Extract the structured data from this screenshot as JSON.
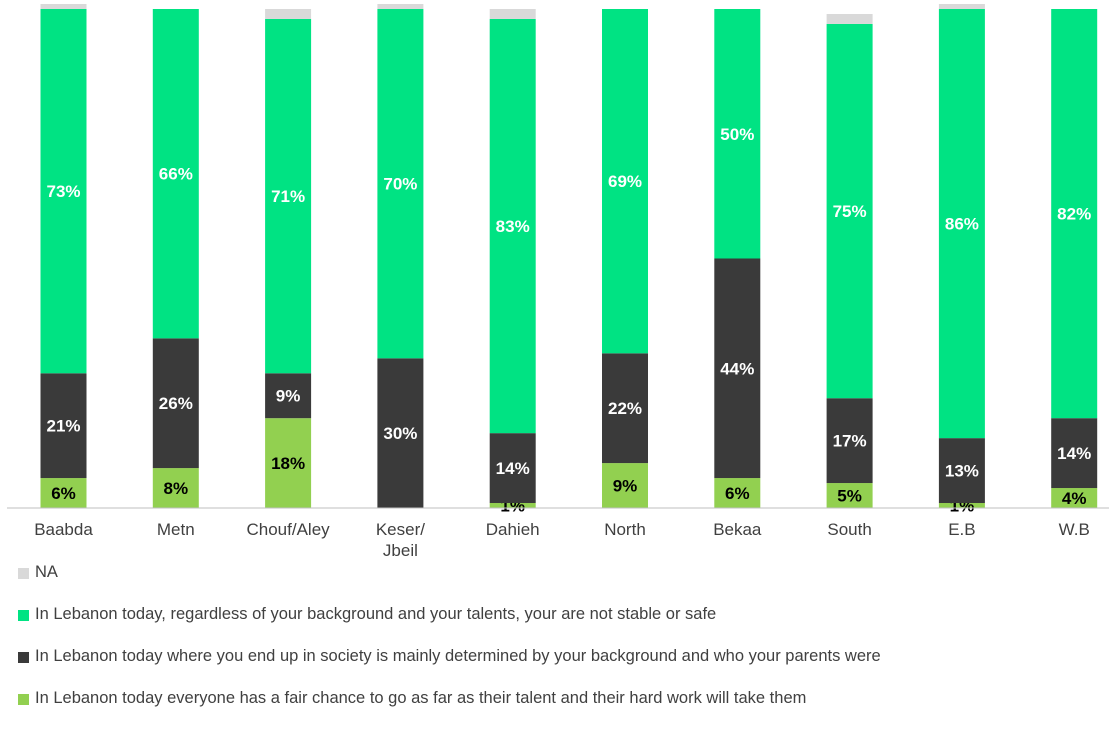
{
  "chart_data": {
    "type": "bar",
    "stacked": true,
    "categories": [
      "Baabda",
      "Metn",
      "Chouf/Aley",
      "Keser/ Jbeil",
      "Dahieh",
      "North",
      "Bekaa",
      "South",
      "E.B",
      "W.B"
    ],
    "series": [
      {
        "name": "In Lebanon today everyone has a fair chance to go as far as their talent and their hard work will take them",
        "color": "#92d050",
        "label_color": "#000000",
        "values": [
          6,
          8,
          18,
          0,
          1,
          9,
          6,
          5,
          1,
          4
        ],
        "labels": [
          "6%",
          "8%",
          "18%",
          "",
          "1%",
          "9%",
          "6%",
          "5%",
          "1%",
          "4%"
        ]
      },
      {
        "name": "In Lebanon today where you end up in society is mainly determined by your background and who your parents were",
        "color": "#3a3a3a",
        "label_color": "#ffffff",
        "values": [
          21,
          26,
          9,
          30,
          14,
          22,
          44,
          17,
          13,
          14
        ],
        "labels": [
          "21%",
          "26%",
          "9%",
          "30%",
          "14%",
          "22%",
          "44%",
          "17%",
          "13%",
          "14%"
        ]
      },
      {
        "name": "In Lebanon today, regardless of your background and your talents, your are not stable or safe",
        "color": "#00e383",
        "label_color": "#ffffff",
        "values": [
          73,
          66,
          71,
          70,
          83,
          69,
          50,
          75,
          86,
          82
        ],
        "labels": [
          "73%",
          "66%",
          "71%",
          "70%",
          "83%",
          "69%",
          "50%",
          "75%",
          "86%",
          "82%"
        ]
      },
      {
        "name": "NA",
        "color": "#d9d9d9",
        "label_color": "#000000",
        "values": [
          1,
          0,
          2,
          1,
          2,
          0,
          0,
          2,
          1,
          0
        ],
        "labels": [
          "",
          "",
          "",
          "",
          "",
          "",
          "",
          "",
          "",
          ""
        ]
      }
    ],
    "ylim": [
      0,
      100
    ],
    "grid": false,
    "legend_position": "bottom",
    "legend_order": [
      "NA",
      "In Lebanon today, regardless of your background and your talents, your are not stable or safe",
      "In Lebanon today where you end up in society is mainly determined by your background and who your parents were",
      "In Lebanon today everyone has a fair chance to go as far as their talent and their hard work will take them"
    ]
  },
  "legend": [
    {
      "label": "NA",
      "color": "#d9d9d9"
    },
    {
      "label": "In Lebanon today, regardless of your background and your talents, your are not stable or safe",
      "color": "#00e383"
    },
    {
      "label": "In Lebanon today where you end up in society is mainly determined by your background and who your parents were",
      "color": "#3a3a3a"
    },
    {
      "label": "In Lebanon today everyone has a fair chance to go as far as their talent and their hard work will take them",
      "color": "#92d050"
    }
  ]
}
